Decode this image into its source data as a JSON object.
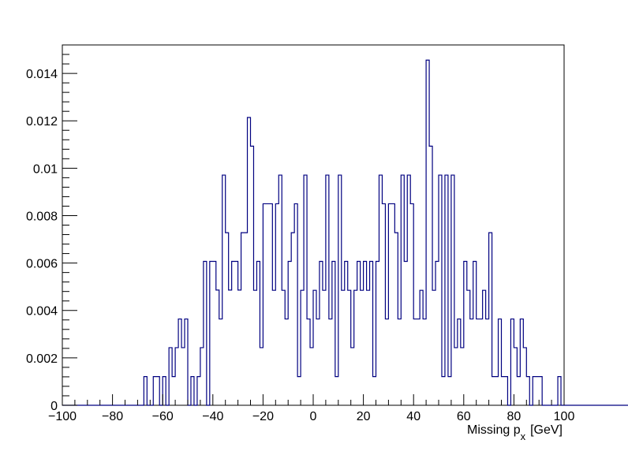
{
  "chart_data": {
    "type": "histogram",
    "xlabel": {
      "main": "Missing p",
      "sub": "x",
      "unit": "[GeV]"
    },
    "ylabel": "",
    "title": "",
    "xlim": [
      -100,
      100
    ],
    "ylim": [
      0,
      0.0152
    ],
    "x_ticks": [
      -100,
      -80,
      -60,
      -40,
      -20,
      0,
      20,
      40,
      60,
      80,
      100
    ],
    "x_tick_labels": [
      "−100",
      "−80",
      "−60",
      "−40",
      "−20",
      "0",
      "20",
      "40",
      "60",
      "80",
      "100"
    ],
    "y_ticks": [
      0,
      0.002,
      0.004,
      0.006,
      0.008,
      0.01,
      0.012,
      0.014
    ],
    "y_tick_labels": [
      "0",
      "0.002",
      "0.004",
      "0.006",
      "0.008",
      "0.01",
      "0.012",
      "0.014"
    ],
    "bin_width": 1.25,
    "bins_start": -100,
    "values": [
      0,
      0,
      0,
      0,
      0,
      0,
      0,
      0,
      0,
      0,
      0,
      0,
      0,
      0,
      0,
      0,
      0,
      0,
      0,
      0,
      0,
      0,
      0,
      0,
      0,
      0,
      0.00121,
      0,
      0,
      0.00121,
      0.00121,
      0,
      0.00121,
      0,
      0.00243,
      0.00121,
      0.00243,
      0.00364,
      0.00243,
      0.00364,
      0,
      0.00121,
      0,
      0.00121,
      0.00243,
      0.00607,
      0,
      0.00607,
      0.00607,
      0.00486,
      0.00364,
      0.00971,
      0.00728,
      0.00486,
      0.00607,
      0.00607,
      0.00486,
      0.00728,
      0.00728,
      0.01214,
      0.01093,
      0.00485,
      0.00607,
      0.00243,
      0.0085,
      0.0085,
      0.0085,
      0.00485,
      0.0085,
      0.00971,
      0.00485,
      0.00364,
      0.00607,
      0.00728,
      0.0085,
      0.00121,
      0.00485,
      0.00971,
      0.00364,
      0.00243,
      0.00485,
      0.00364,
      0.00607,
      0.00485,
      0.00971,
      0.00364,
      0.00607,
      0.00121,
      0.00971,
      0.00485,
      0.00607,
      0.00485,
      0.00243,
      0.00485,
      0.00607,
      0.00485,
      0.00607,
      0.00485,
      0.00607,
      0.00121,
      0.00607,
      0.00971,
      0.0085,
      0.00364,
      0.0085,
      0.0085,
      0.00728,
      0.00364,
      0.00971,
      0.00607,
      0.00971,
      0.0085,
      0.00364,
      0.00364,
      0.00485,
      0.00364,
      0.01456,
      0.01093,
      0.00485,
      0.00607,
      0.00971,
      0.00121,
      0.00971,
      0.00121,
      0.00971,
      0.00243,
      0.00364,
      0.00243,
      0.00607,
      0.00485,
      0.00364,
      0.00607,
      0.00364,
      0.00364,
      0.00485,
      0.00364,
      0.00728,
      0.00121,
      0.00121,
      0.00364,
      0.00121,
      0.00121,
      0,
      0.00364,
      0.00243,
      0.00121,
      0.00364,
      0.00243,
      0.00121,
      0,
      0.00121,
      0.00121,
      0.00121,
      0,
      0,
      0,
      0,
      0,
      0.00121,
      0,
      0,
      0,
      0,
      0,
      0,
      0,
      0,
      0,
      0,
      0,
      0,
      0,
      0,
      0,
      0,
      0,
      0,
      0,
      0,
      0,
      0,
      0,
      0,
      0
    ]
  }
}
